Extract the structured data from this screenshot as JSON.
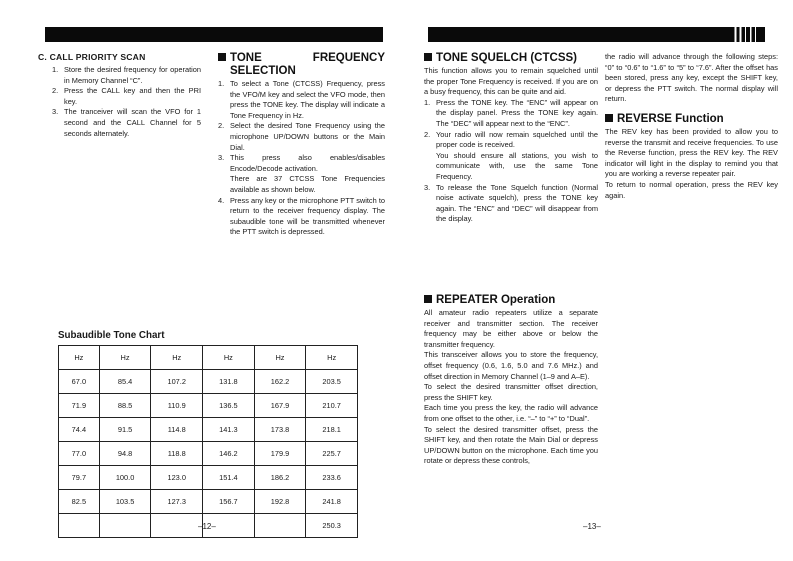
{
  "page_left": {
    "number": "–12–",
    "call_priority_scan": {
      "heading": "C. CALL PRIORITY SCAN",
      "steps": [
        {
          "num": "1.",
          "text": "Store the desired frequency for operation in Memory Channel “C”."
        },
        {
          "num": "2.",
          "text": "Press the CALL key and then the PRI key."
        },
        {
          "num": "3.",
          "text": "The tranceiver will scan the VFO for 1 second and the CALL Channel for 5 seconds alternately."
        }
      ]
    },
    "tone_frequency": {
      "heading": "TONE FREQUENCY SELECTION",
      "steps": [
        {
          "num": "1.",
          "text": "To select a Tone (CTCSS) Frequency, press the VFO/M key and select the VFO mode, then press the TONE key. The display will indicate a Tone Frequency in Hz."
        },
        {
          "num": "2.",
          "text": "Select the desired Tone Frequency using the microphone UP/DOWN buttons or the Main Dial."
        },
        {
          "num": "3.",
          "text": "This press also enables/disables Encode/Decode activation.",
          "extra": "There are 37 CTCSS Tone Frequencies available as shown below."
        },
        {
          "num": "4.",
          "text": "Press any key or the microphone PTT switch to return to the receiver frequency display. The subaudible tone will be transmitted whenever the PTT switch is depressed."
        }
      ]
    },
    "tone_chart": {
      "title": "Subaudible Tone Chart",
      "headers": [
        "Hz",
        "Hz",
        "Hz",
        "Hz",
        "Hz",
        "Hz"
      ],
      "rows": [
        [
          "67.0",
          "85.4",
          "107.2",
          "131.8",
          "162.2",
          "203.5"
        ],
        [
          "71.9",
          "88.5",
          "110.9",
          "136.5",
          "167.9",
          "210.7"
        ],
        [
          "74.4",
          "91.5",
          "114.8",
          "141.3",
          "173.8",
          "218.1"
        ],
        [
          "77.0",
          "94.8",
          "118.8",
          "146.2",
          "179.9",
          "225.7"
        ],
        [
          "79.7",
          "100.0",
          "123.0",
          "151.4",
          "186.2",
          "233.6"
        ],
        [
          "82.5",
          "103.5",
          "127.3",
          "156.7",
          "192.8",
          "241.8"
        ],
        [
          "",
          "",
          "",
          "",
          "",
          "250.3"
        ]
      ]
    }
  },
  "page_right": {
    "number": "–13–",
    "tone_squelch": {
      "heading": "TONE SQUELCH (CTCSS)",
      "intro": "This function allows you to remain squelched until the proper Tone Frequency is received. If you are on a busy frequency, this can be quite and aid.",
      "steps": [
        {
          "num": "1.",
          "text": "Press the TONE key. The “ENC” will appear on the display panel. Press the TONE key again. The “DEC” will appear next to the “ENC”."
        },
        {
          "num": "2.",
          "text": "Your radio will now remain squelched until the proper code is received.",
          "extra": "You should ensure all stations, you wish to communicate with, use the same Tone Frequency."
        },
        {
          "num": "3.",
          "text": "To release the Tone Squelch function (Normal noise activate squelch), press the TONE key again. The “ENC” and “DEC” will disappear from the display."
        }
      ]
    },
    "repeater": {
      "heading": "REPEATER Operation",
      "paragraphs": [
        "All amateur radio repeaters utilize a separate receiver and transmitter section. The receiver frequency may be either above or below the transmitter frequency.",
        "This transceiver allows you to store the frequency, offset frequency (0.6, 1.6, 5.0 and 7.6 MHz.) and offset direction in Memory Channel (1–9 and A–E).",
        "To select the desired transmitter offset direction, press the SHIFT key.",
        "Each time you press the key, the radio will advance from one offset to the other, i.e. “–” to “+” to “Dual”.",
        "To select the desired transmitter offset, press the SHIFT key, and then rotate the Main Dial or depress UP/DOWN button on the microphone. Each time you rotate or depress these controls,"
      ]
    },
    "repeater_continued": "the radio will advance through the following steps: “0” to “0.6” to “1.6” to “5” to “7.6”. After the offset has been stored, press any key, except the SHIFT key, or depress the PTT switch. The normal display will return.",
    "reverse": {
      "heading": "REVERSE Function",
      "paragraphs": [
        "The REV key has been provided to allow you to reverse the transmit and receive frequencies. To use the Reverse function, press the REV key. The REV indicator will light in the display to remind you that you are working a reverse repeater pair.",
        "To return to normal operation, press the REV key again."
      ]
    }
  }
}
